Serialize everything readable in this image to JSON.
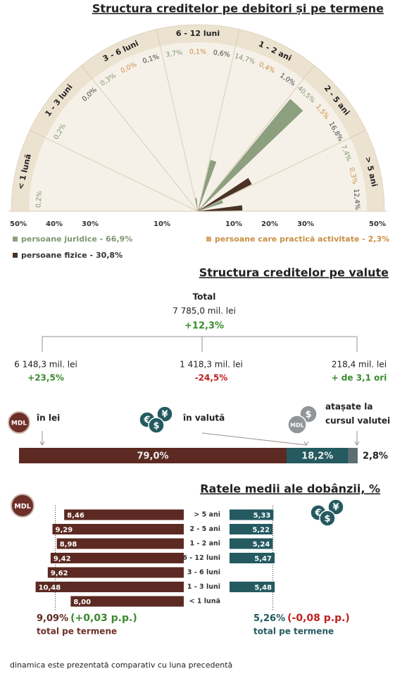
{
  "radial": {
    "title": "Structura creditelor pe debitori și pe termene",
    "type": "polar-bar",
    "categories": [
      "< 1 lună",
      "1 - 3 luni",
      "3 - 6 luni",
      "6 - 12 luni",
      "1 - 2 ani",
      "2 - 5 ani",
      "> 5 ani"
    ],
    "series": [
      {
        "name": "persoane juridice - 66,9%",
        "color": "#8c9f7f",
        "label_color": "#7f9672",
        "values": [
          0.2,
          0.2,
          0.3,
          3.7,
          14.7,
          40.5,
          7.4
        ],
        "value_labels": [
          "0,2%",
          "0,2%",
          "0,3%",
          "3,7%",
          "14,7%",
          "40,5%",
          "7,4%"
        ]
      },
      {
        "name": "persoane care practică activitate - 2,3%",
        "color": "#d8a86c",
        "label_color": "#c98f45",
        "values": [
          null,
          null,
          0.0,
          0.1,
          0.4,
          1.5,
          0.3
        ],
        "value_labels": [
          null,
          null,
          "0,0%",
          "0,1%",
          "0,4%",
          "1,5%",
          "0,3%"
        ]
      },
      {
        "name": "persoane fizice - 30,8%",
        "color": "#4a3226",
        "label_color": "#444444",
        "values": [
          null,
          0.0,
          0.1,
          0.6,
          1.0,
          16.8,
          12.4
        ],
        "value_labels": [
          null,
          "0,0%",
          "0,1%",
          "0,6%",
          "1,0%",
          "16,8%",
          "12,4%"
        ]
      }
    ],
    "rlim": [
      0,
      50
    ],
    "ticks_left": [
      {
        "value": 50,
        "label": "50%"
      },
      {
        "value": 40,
        "label": "40%"
      },
      {
        "value": 30,
        "label": "30%"
      },
      {
        "value": 10,
        "label": "10%"
      }
    ],
    "ticks_right": [
      {
        "value": 10,
        "label": "10%"
      },
      {
        "value": 20,
        "label": "20%"
      },
      {
        "value": 30,
        "label": "30%"
      },
      {
        "value": 50,
        "label": "50%"
      }
    ]
  },
  "currency": {
    "title": "Structura creditelor pe valute",
    "total_label": "Total",
    "total_amount": "7 785,0 mil. lei",
    "total_change": "+12,3%",
    "branches": [
      {
        "amount": "6 148,3 mil. lei",
        "change": "+23,5%",
        "label": [
          "în lei"
        ]
      },
      {
        "amount": "1 418,3 mil. lei",
        "change": "-24,5%",
        "label": [
          "în valută"
        ]
      },
      {
        "amount": "218,4 mil. lei",
        "change": "+ de 3,1 ori",
        "label": [
          "atașate la",
          "cursul valutei"
        ]
      }
    ],
    "share": {
      "values": [
        79.0,
        18.2,
        2.8
      ],
      "value_labels": [
        "79,0%",
        "18,2%",
        "2,8%"
      ],
      "colors": [
        "#5c2a22",
        "#245a60",
        "#5f6d73"
      ]
    }
  },
  "rates": {
    "title": "Ratele medii ale dobânzii, %",
    "categories": [
      "> 5 ani",
      "2 - 5 ani",
      "1 - 2 ani",
      "6 - 12 luni",
      "3 - 6 luni",
      "1 - 3 luni",
      "< 1 lună"
    ],
    "mdl": {
      "color": "#5c2a22",
      "xlim": [
        0,
        13
      ],
      "values": [
        8.46,
        9.29,
        8.98,
        9.42,
        9.62,
        10.48,
        8.0
      ],
      "value_labels": [
        "8,46",
        "9,29",
        "8,98",
        "9,42",
        "9,62",
        "10,48",
        "8,00"
      ],
      "average": 9.09,
      "average_label": "9,09%",
      "change": "(+0,03 p.p.)",
      "note": "total pe termene"
    },
    "fx": {
      "color": "#245a60",
      "xlim": [
        0,
        20
      ],
      "values": [
        5.33,
        5.22,
        5.24,
        5.47,
        null,
        5.48,
        null
      ],
      "value_labels": [
        "5,33",
        "5,22",
        "5,24",
        "5,47",
        null,
        "5,48",
        null
      ],
      "average": 5.26,
      "average_label": "5,26%",
      "change": "(-0,08 p.p.)",
      "note": "total pe termene"
    }
  },
  "icons": {
    "mdl": "MDL",
    "symbols": [
      "€",
      "$",
      "¥"
    ]
  },
  "footer": "dinamica este prezentată comparativ cu luna precedentă"
}
